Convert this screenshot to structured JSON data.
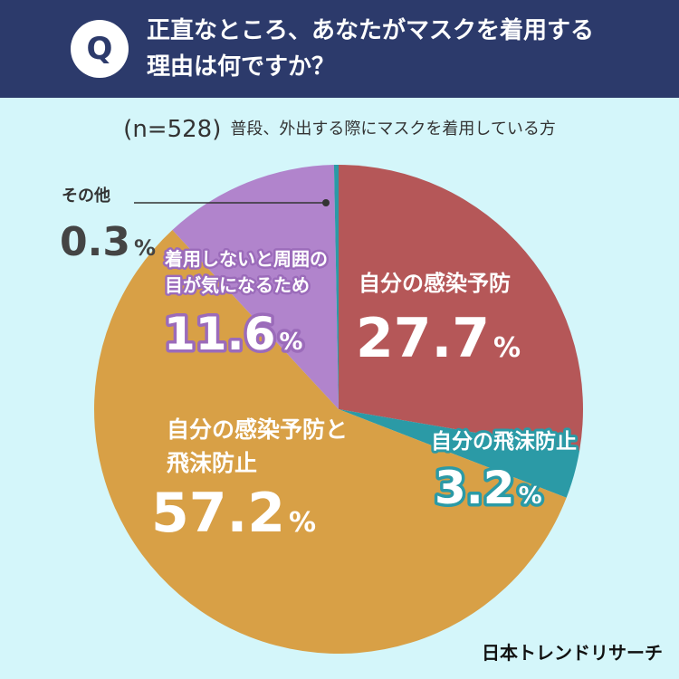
{
  "header": {
    "q_badge": "Q",
    "question_line1": "正直なところ、あなたがマスクを着用する",
    "question_line2": "理由は何ですか？"
  },
  "subtitle": {
    "sample": "(n=528)",
    "description": "普段、外出する際にマスクを着用している方"
  },
  "brand": "日本トレンドリサーチ",
  "colors": {
    "header_bg": "#2c3a6b",
    "page_bg": "#d4f6fa",
    "red": "#b55758",
    "teal": "#2b9aa6",
    "orange": "#d8a046",
    "purple": "#b184cc"
  },
  "chart_data": {
    "type": "pie",
    "title": "正直なところ、あなたがマスクを着用する理由は何ですか？",
    "slices": [
      {
        "label": "自分の感染予防",
        "label_lines": [
          "自分の感染予防"
        ],
        "value": 27.7,
        "display": "27.7",
        "color": "#b55758"
      },
      {
        "label": "自分の飛沫防止",
        "label_lines": [
          "自分の飛沫防止"
        ],
        "value": 3.2,
        "display": "3.2",
        "color": "#2b9aa6"
      },
      {
        "label": "自分の感染予防と飛沫防止",
        "label_lines": [
          "自分の感染予防と",
          "飛沫防止"
        ],
        "value": 57.2,
        "display": "57.2",
        "color": "#d8a046"
      },
      {
        "label": "着用しないと周囲の目が気になるため",
        "label_lines": [
          "着用しないと周囲の",
          "目が気になるため"
        ],
        "value": 11.6,
        "display": "11.6",
        "color": "#b184cc"
      },
      {
        "label": "その他",
        "label_lines": [
          "その他"
        ],
        "value": 0.3,
        "display": "0.3",
        "color": "#2b9aa6"
      }
    ],
    "unit": "%"
  }
}
